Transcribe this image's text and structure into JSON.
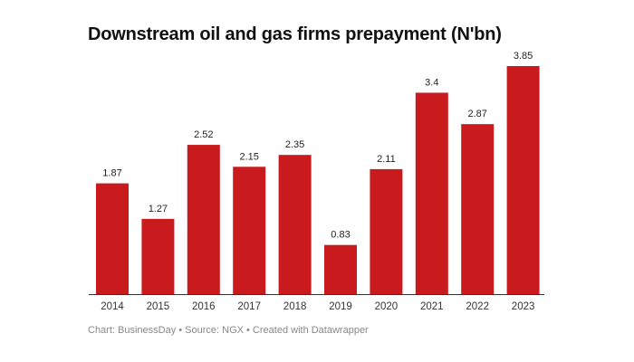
{
  "chart_data": {
    "type": "bar",
    "title": "Downstream oil and gas firms prepayment (N'bn)",
    "categories": [
      "2014",
      "2015",
      "2016",
      "2017",
      "2018",
      "2019",
      "2020",
      "2021",
      "2022",
      "2023"
    ],
    "values": [
      1.87,
      1.27,
      2.52,
      2.15,
      2.35,
      0.83,
      2.11,
      3.4,
      2.87,
      3.85
    ],
    "data_labels": [
      "1.87",
      "1.27",
      "2.52",
      "2.15",
      "2.35",
      "0.83",
      "2.11",
      "3.4",
      "2.87",
      "3.85"
    ],
    "xlabel": "",
    "ylabel": "",
    "ylim": [
      0,
      3.85
    ],
    "grid": false,
    "bar_color": "#c91b1e"
  },
  "footer": "Chart: BusinessDay • Source: NGX • Created with Datawrapper"
}
